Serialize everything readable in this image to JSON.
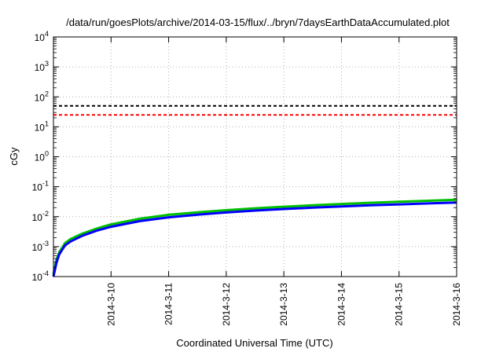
{
  "chart_data": {
    "type": "line",
    "title": "/data/run/goesPlots/archive/2014-03-15/flux/../bryn/7daysEarthDataAccumulated.plot",
    "xlabel": "Coordinated Universal Time (UTC)",
    "ylabel": "cGy",
    "y_scale": "log",
    "ylim_exponents": [
      -4,
      4
    ],
    "y_tick_labels": [
      {
        "exp": -4,
        "base": "10",
        "sup": "-4"
      },
      {
        "exp": -3,
        "base": "10",
        "sup": "-3"
      },
      {
        "exp": -2,
        "base": "10",
        "sup": "-2"
      },
      {
        "exp": -1,
        "base": "10",
        "sup": "-1"
      },
      {
        "exp": 0,
        "base": "10",
        "sup": "0"
      },
      {
        "exp": 1,
        "base": "10",
        "sup": "1"
      },
      {
        "exp": 2,
        "base": "10",
        "sup": "2"
      },
      {
        "exp": 3,
        "base": "10",
        "sup": "3"
      },
      {
        "exp": 4,
        "base": "10",
        "sup": "4"
      }
    ],
    "xlim_days": [
      9.0,
      16.0
    ],
    "x_ticks": [
      {
        "day": 10,
        "label": "2014-3-10"
      },
      {
        "day": 11,
        "label": "2014-3-11"
      },
      {
        "day": 12,
        "label": "2014-3-12"
      },
      {
        "day": 13,
        "label": "2014-3-13"
      },
      {
        "day": 14,
        "label": "2014-3-14"
      },
      {
        "day": 15,
        "label": "2014-3-15"
      },
      {
        "day": 16,
        "label": "2014-3-16"
      }
    ],
    "grid": true,
    "thresholds": [
      {
        "value": 50,
        "color": "#000000",
        "style": "dashed"
      },
      {
        "value": 25,
        "color": "#ff0000",
        "style": "dashed"
      }
    ],
    "series": [
      {
        "color": "#00c000",
        "x": [
          9.0,
          9.05,
          9.1,
          9.2,
          9.3,
          9.5,
          9.75,
          10.0,
          10.5,
          11.0,
          11.5,
          12.0,
          12.5,
          13.0,
          13.5,
          14.0,
          14.5,
          15.0,
          15.5,
          16.0
        ],
        "values": [
          0.00012,
          0.00035,
          0.00065,
          0.0013,
          0.0018,
          0.0027,
          0.004,
          0.0055,
          0.0085,
          0.0115,
          0.014,
          0.0165,
          0.019,
          0.0215,
          0.024,
          0.0265,
          0.029,
          0.0315,
          0.034,
          0.0365
        ]
      },
      {
        "color": "#0000ff",
        "x": [
          9.0,
          9.05,
          9.1,
          9.2,
          9.3,
          9.5,
          9.75,
          10.0,
          10.5,
          11.0,
          11.5,
          12.0,
          12.5,
          13.0,
          13.5,
          14.0,
          14.5,
          15.0,
          15.5,
          16.0
        ],
        "values": [
          0.0001,
          0.00028,
          0.00055,
          0.0011,
          0.0015,
          0.0023,
          0.0034,
          0.0046,
          0.0071,
          0.0095,
          0.0117,
          0.0138,
          0.016,
          0.018,
          0.02,
          0.022,
          0.024,
          0.0258,
          0.0276,
          0.0295
        ]
      }
    ]
  }
}
